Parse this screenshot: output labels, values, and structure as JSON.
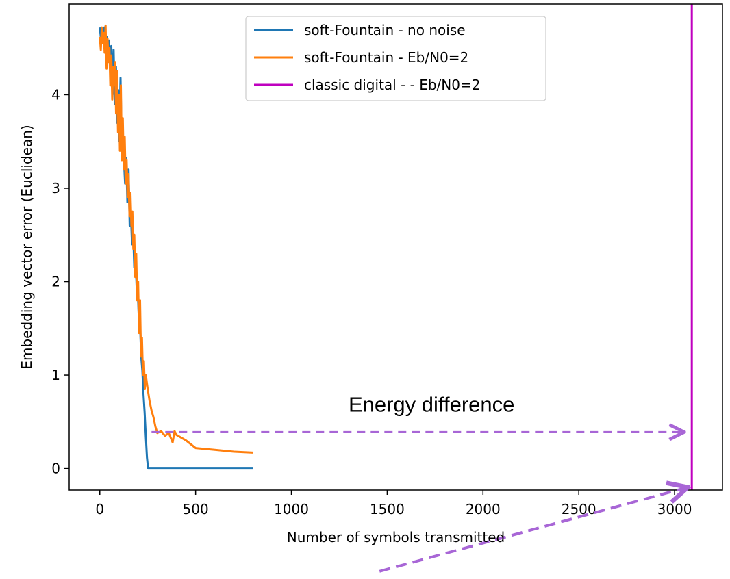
{
  "chart_data": {
    "type": "line",
    "title": "",
    "xlabel": "Number of symbols transmitted",
    "ylabel": "Embedding vector error (Euclidean)",
    "xlim": [
      -160,
      3250
    ],
    "ylim": [
      -0.23,
      4.97
    ],
    "xticks": [
      0,
      500,
      1000,
      1500,
      2000,
      2500,
      3000
    ],
    "yticks": [
      0,
      1,
      2,
      3,
      4
    ],
    "grid": false,
    "legend_position": "top-center",
    "series": [
      {
        "name": "soft-Fountain - no noise",
        "color": "#1f77b4",
        "x": [
          0,
          6,
          12,
          18,
          24,
          30,
          36,
          42,
          48,
          54,
          60,
          66,
          72,
          78,
          84,
          90,
          96,
          102,
          108,
          114,
          120,
          126,
          132,
          138,
          144,
          150,
          156,
          162,
          168,
          174,
          180,
          186,
          192,
          198,
          204,
          210,
          216,
          222,
          228,
          234,
          240,
          246,
          252,
          800
        ],
        "y": [
          4.72,
          4.6,
          4.7,
          4.55,
          4.72,
          4.5,
          4.62,
          4.38,
          4.58,
          4.3,
          4.52,
          4.0,
          4.48,
          3.9,
          4.3,
          3.7,
          4.05,
          3.5,
          4.18,
          3.45,
          3.6,
          3.3,
          3.05,
          3.32,
          2.85,
          3.2,
          2.6,
          2.75,
          2.4,
          2.55,
          2.15,
          2.3,
          1.95,
          1.9,
          1.6,
          1.55,
          1.2,
          1.05,
          0.8,
          0.6,
          0.35,
          0.12,
          0.0,
          0.0
        ]
      },
      {
        "name": "soft-Fountain - Eb/N0=2",
        "color": "#ff7f0e",
        "x": [
          0,
          5,
          10,
          15,
          20,
          25,
          30,
          35,
          40,
          45,
          50,
          55,
          60,
          65,
          70,
          75,
          80,
          85,
          90,
          95,
          100,
          105,
          110,
          115,
          120,
          125,
          130,
          135,
          140,
          145,
          150,
          155,
          160,
          165,
          170,
          175,
          180,
          185,
          190,
          195,
          200,
          205,
          210,
          215,
          220,
          225,
          230,
          235,
          240,
          250,
          260,
          270,
          280,
          290,
          300,
          320,
          340,
          360,
          380,
          390,
          400,
          450,
          500,
          600,
          700,
          800
        ],
        "y": [
          4.62,
          4.48,
          4.72,
          4.55,
          4.66,
          4.45,
          4.74,
          4.28,
          4.6,
          4.35,
          4.5,
          4.1,
          4.42,
          3.95,
          4.3,
          4.1,
          4.35,
          3.8,
          4.25,
          3.6,
          4.0,
          3.4,
          4.1,
          3.3,
          3.75,
          3.2,
          3.55,
          3.05,
          3.3,
          2.9,
          3.15,
          2.7,
          2.95,
          2.6,
          2.75,
          2.35,
          2.5,
          2.05,
          2.3,
          1.8,
          2.0,
          1.45,
          1.8,
          1.2,
          1.4,
          1.0,
          1.15,
          0.85,
          1.0,
          0.85,
          0.72,
          0.62,
          0.55,
          0.45,
          0.38,
          0.4,
          0.35,
          0.38,
          0.28,
          0.4,
          0.36,
          0.3,
          0.22,
          0.2,
          0.18,
          0.17
        ]
      },
      {
        "name": "classic digital - - Eb/N0=2",
        "color": "#bf00bf",
        "x": [
          3090,
          3090
        ],
        "y": [
          -0.23,
          4.97
        ]
      }
    ],
    "annotations": [
      {
        "text": "Energy difference",
        "x_from": 270,
        "x_to": 3050,
        "y": 0.39,
        "color": "#a866d6"
      }
    ],
    "extra_arrow": {
      "color": "#a866d6",
      "from": [
        1460,
        -1.1
      ],
      "to": [
        3070,
        -0.2
      ]
    }
  }
}
